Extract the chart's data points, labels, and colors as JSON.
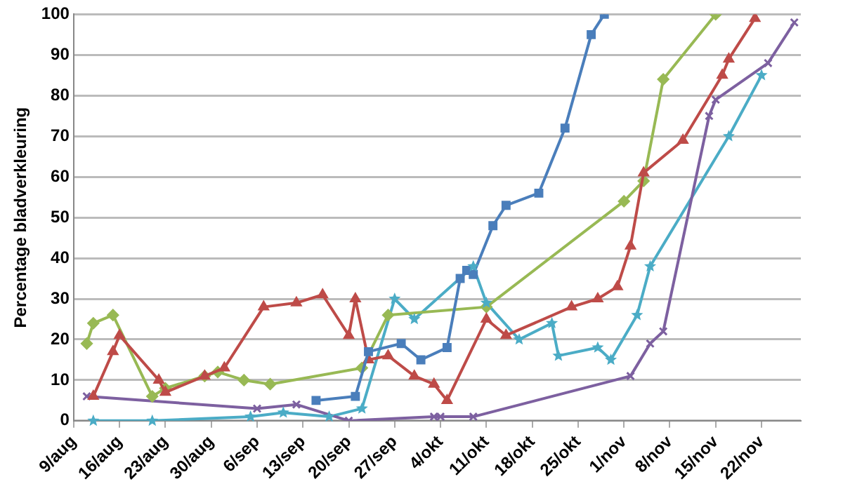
{
  "chart_data": {
    "type": "line",
    "ylabel": "Percentage bladverkleuring",
    "ylim": [
      0,
      100
    ],
    "yticks": [
      0,
      10,
      20,
      30,
      40,
      50,
      60,
      70,
      80,
      90,
      100
    ],
    "xlim": [
      "--08-09",
      "--11-28"
    ],
    "xticks": [
      {
        "value": "--08-09",
        "label": "9/aug"
      },
      {
        "value": "--08-16",
        "label": "16/aug"
      },
      {
        "value": "--08-23",
        "label": "23/aug"
      },
      {
        "value": "--08-30",
        "label": "30/aug"
      },
      {
        "value": "--09-06",
        "label": "6/sep"
      },
      {
        "value": "--09-13",
        "label": "13/sep"
      },
      {
        "value": "--09-20",
        "label": "20/sep"
      },
      {
        "value": "--09-27",
        "label": "27/sep"
      },
      {
        "value": "--10-04",
        "label": "4/okt"
      },
      {
        "value": "--10-11",
        "label": "11/okt"
      },
      {
        "value": "--10-18",
        "label": "18/okt"
      },
      {
        "value": "--10-25",
        "label": "25/okt"
      },
      {
        "value": "--11-01",
        "label": "1/nov"
      },
      {
        "value": "--11-08",
        "label": "8/nov"
      },
      {
        "value": "--11-15",
        "label": "15/nov"
      },
      {
        "value": "--11-22",
        "label": "22/nov"
      }
    ],
    "grid": "y",
    "legend": false,
    "line_style": "solid",
    "series": [
      {
        "color": "#4a7ebb",
        "marker": "square",
        "x": [
          "--09-15",
          "--09-21",
          "--09-23",
          "--09-28",
          "--10-01",
          "--10-05",
          "--10-07",
          "--10-08",
          "--10-09",
          "--10-12",
          "--10-14",
          "--10-19",
          "--10-23",
          "--10-27",
          "--10-29"
        ],
        "values": [
          5,
          6,
          17,
          19,
          15,
          18,
          35,
          37,
          36,
          48,
          53,
          56,
          72,
          95,
          100
        ]
      },
      {
        "color": "#be4b48",
        "marker": "triangle",
        "x": [
          "--08-12",
          "--08-15",
          "--08-16",
          "--08-22",
          "--08-23",
          "--08-29",
          "--09-01",
          "--09-07",
          "--09-12",
          "--09-16",
          "--09-20",
          "--09-21",
          "--09-23",
          "--09-26",
          "--09-30",
          "--10-03",
          "--10-05",
          "--10-11",
          "--10-14",
          "--10-24",
          "--10-28",
          "--10-31",
          "--11-02",
          "--11-04",
          "--11-10",
          "--11-16",
          "--11-17",
          "--11-21"
        ],
        "values": [
          6,
          17,
          21,
          10,
          7,
          11,
          13,
          28,
          29,
          31,
          21,
          30,
          15,
          16,
          11,
          9,
          5,
          25,
          21,
          28,
          30,
          33,
          43,
          61,
          69,
          85,
          89,
          99
        ]
      },
      {
        "color": "#98b954",
        "marker": "diamond",
        "x": [
          "--08-11",
          "--08-12",
          "--08-15",
          "--08-21",
          "--08-23",
          "--08-29",
          "--08-31",
          "--09-04",
          "--09-08",
          "--09-22",
          "--09-26",
          "--10-11",
          "--11-01",
          "--11-04",
          "--11-07",
          "--11-15"
        ],
        "values": [
          19,
          24,
          26,
          6,
          8,
          11,
          12,
          10,
          9,
          13,
          26,
          28,
          54,
          59,
          84,
          100
        ]
      },
      {
        "color": "#7d60a0",
        "marker": "cross",
        "x": [
          "--08-11",
          "--09-06",
          "--09-12",
          "--09-20",
          "--10-03",
          "--10-04",
          "--10-09",
          "--11-02",
          "--11-05",
          "--11-07",
          "--11-14",
          "--11-15",
          "--11-23",
          "--11-27"
        ],
        "values": [
          6,
          3,
          4,
          0,
          1,
          1,
          1,
          11,
          19,
          22,
          75,
          79,
          88,
          98
        ]
      },
      {
        "color": "#4bacc6",
        "marker": "star",
        "x": [
          "--08-12",
          "--08-21",
          "--09-05",
          "--09-10",
          "--09-17",
          "--09-22",
          "--09-27",
          "--09-30",
          "--10-09",
          "--10-11",
          "--10-16",
          "--10-21",
          "--10-22",
          "--10-28",
          "--10-30",
          "--11-03",
          "--11-05",
          "--11-17",
          "--11-22"
        ],
        "values": [
          0,
          0,
          1,
          2,
          1,
          3,
          30,
          25,
          38,
          29,
          20,
          24,
          16,
          18,
          15,
          26,
          38,
          70,
          85
        ]
      }
    ]
  }
}
